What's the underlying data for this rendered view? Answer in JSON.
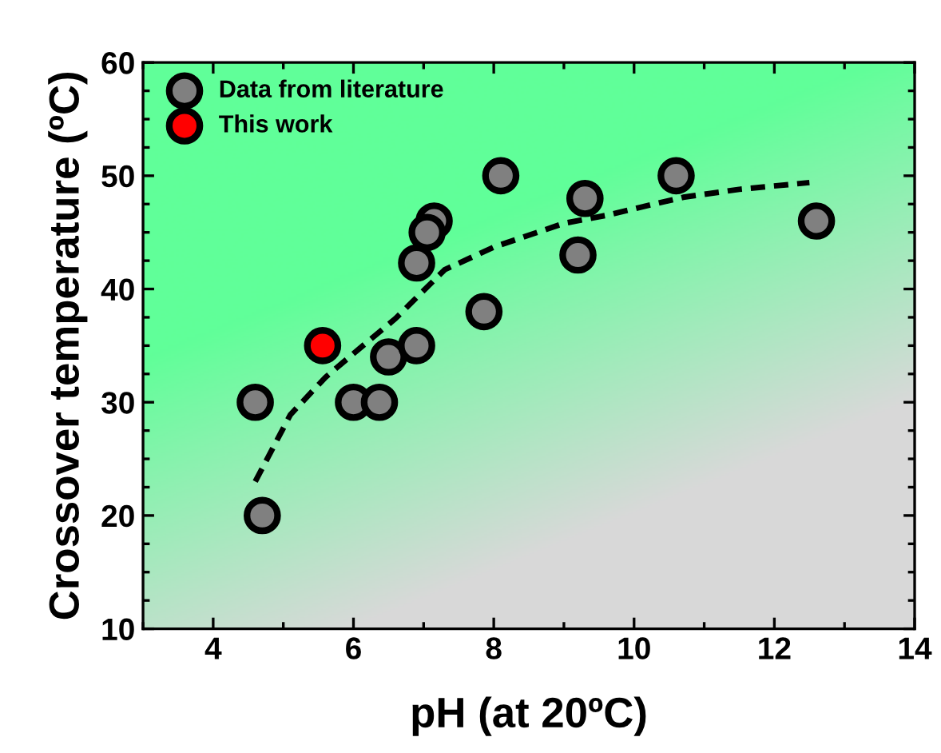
{
  "chart_data": {
    "type": "scatter",
    "xlabel": "pH (at 20ºC)",
    "ylabel": "Crossover temperature (ºC)",
    "xlim": [
      3,
      14
    ],
    "xticks": [
      4,
      6,
      8,
      10,
      12,
      14
    ],
    "ylim": [
      10,
      60
    ],
    "yticks": [
      10,
      20,
      30,
      40,
      50,
      60
    ],
    "grid": false,
    "legend": "top left",
    "marker": "circle",
    "series": [
      {
        "name": "Data from literature",
        "color": "#808080",
        "x": [
          4.6,
          4.7,
          6.0,
          6.37,
          6.5,
          6.9,
          6.9,
          7.15,
          7.05,
          7.86,
          8.1,
          9.2,
          9.3,
          10.6,
          12.6
        ],
        "values": [
          30,
          20,
          30,
          30,
          34,
          35,
          42.3,
          46,
          45,
          38,
          50,
          43,
          48,
          50,
          46
        ]
      },
      {
        "name": "This work",
        "color": "#ff0000",
        "x": [
          5.56
        ],
        "values": [
          35
        ]
      },
      {
        "type": "line",
        "color": "#000000",
        "line_style": "dashed",
        "marker": "none",
        "x": [
          4.6,
          5.1,
          5.6,
          6.0,
          6.6,
          7.3,
          8.0,
          9.0,
          9.6,
          10.7,
          11.5,
          12.5
        ],
        "values": [
          23,
          28.9,
          32.2,
          34.3,
          37.4,
          41.7,
          43.7,
          45.8,
          46.5,
          48.1,
          48.8,
          49.4
        ]
      }
    ]
  }
}
